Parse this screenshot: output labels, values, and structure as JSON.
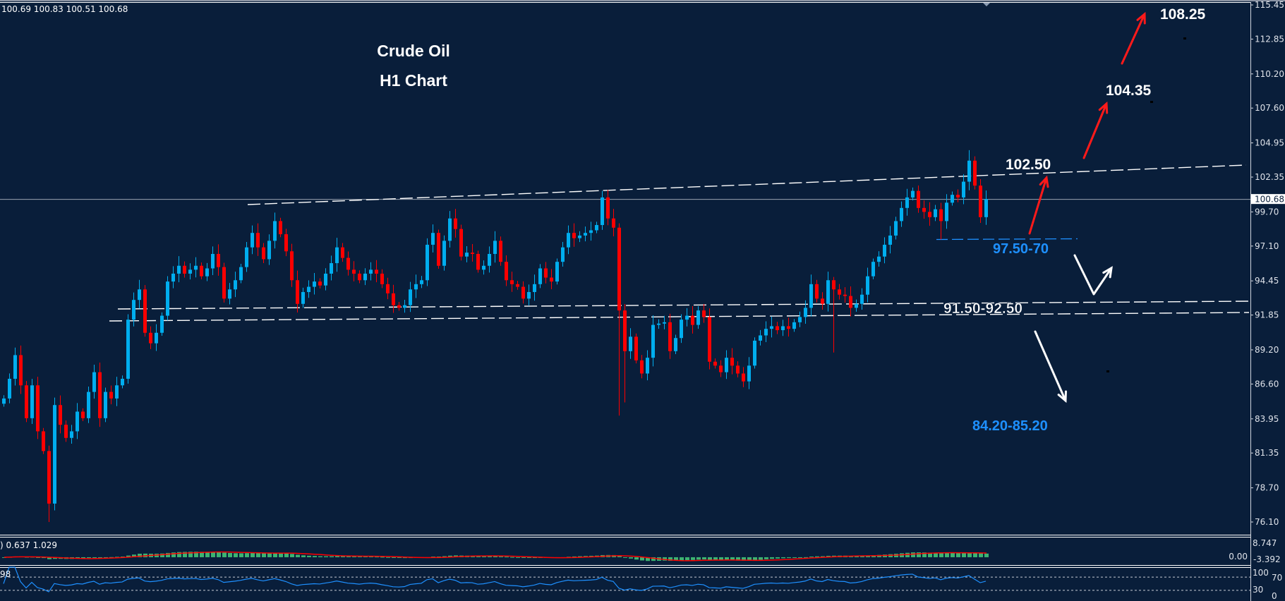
{
  "header": {
    "ohlc": "100.69 100.83 100.51 100.68"
  },
  "colors": {
    "background": "#091e3a",
    "bull": "#00aeef",
    "bear": "#ff0000",
    "doji": "#00e000",
    "trendline": "#ffffff",
    "support_blue": "#1e90ff",
    "arrow_red": "#ff1a1a",
    "macd_hist": "#3cb371",
    "macd_signal": "#ff0000",
    "rsi": "#1e90ff"
  },
  "chart_data": {
    "type": "candlestick",
    "title": "Crude Oil",
    "subtitle": "H1 Chart",
    "ylim": [
      76.1,
      115.45
    ],
    "y_ticks": [
      "115.45",
      "112.85",
      "110.20",
      "107.60",
      "104.95",
      "102.35",
      "99.70",
      "97.10",
      "94.45",
      "91.85",
      "89.20",
      "86.60",
      "83.95",
      "81.35",
      "78.70",
      "76.10"
    ],
    "last_price": "100.68",
    "closes": [
      85.5,
      87.0,
      88.8,
      86.5,
      84.0,
      86.5,
      83.0,
      81.5,
      77.5,
      85.0,
      83.5,
      82.5,
      83.0,
      84.5,
      84.0,
      86.0,
      87.5,
      84.0,
      86.0,
      85.5,
      86.5,
      87.0,
      91.5,
      93.0,
      93.8,
      90.5,
      89.7,
      90.5,
      91.8,
      94.4,
      95.0,
      95.6,
      95.0,
      95.3,
      95.6,
      94.8,
      95.4,
      96.5,
      95.5,
      93.1,
      93.8,
      94.5,
      95.5,
      97.0,
      98.1,
      97.0,
      96.1,
      97.5,
      99.0,
      98.0,
      96.7,
      94.5,
      92.7,
      93.6,
      94.0,
      94.4,
      94.1,
      95.0,
      95.8,
      97.0,
      96.2,
      95.3,
      95.0,
      94.5,
      95.0,
      95.3,
      95.0,
      94.2,
      93.5,
      92.6,
      92.4,
      92.6,
      93.8,
      94.2,
      94.5,
      97.2,
      98.1,
      95.6,
      97.5,
      99.2,
      98.4,
      96.3,
      96.6,
      96.5,
      95.3,
      95.6,
      96.5,
      97.5,
      95.9,
      94.5,
      94.2,
      94.0,
      93.1,
      93.6,
      94.2,
      95.4,
      94.7,
      94.4,
      95.9,
      97.0,
      98.1,
      97.7,
      97.9,
      98.1,
      98.3,
      98.7,
      100.8,
      99.2,
      98.5,
      92.2,
      89.1,
      90.2,
      88.4,
      87.4,
      88.6,
      91.1,
      91.2,
      91.3,
      89.1,
      90.1,
      91.5,
      91.8,
      91.1,
      92.2,
      91.7,
      88.3,
      88.0,
      87.5,
      88.6,
      88.0,
      87.4,
      86.8,
      88.0,
      89.9,
      90.3,
      90.8,
      91.0,
      90.7,
      91.0,
      90.8,
      91.3,
      91.7,
      92.4,
      94.2,
      93.1,
      92.7,
      94.5,
      93.8,
      93.4,
      93.3,
      92.4,
      92.7,
      93.4,
      94.8,
      95.9,
      96.3,
      97.2,
      97.9,
      99.0,
      100.0,
      100.8,
      101.3,
      100.0,
      99.7,
      99.3,
      99.9,
      99.0,
      100.4,
      101.0,
      100.8,
      102.0,
      103.6,
      101.7,
      99.3,
      100.68
    ],
    "wick_extremes": [
      {
        "i": 8,
        "low": 76.1
      },
      {
        "i": 106,
        "high": 101.3
      },
      {
        "i": 109,
        "low": 84.2
      },
      {
        "i": 110,
        "low": 85.2
      },
      {
        "i": 147,
        "low": 89.0
      },
      {
        "i": 166,
        "low": 97.6
      },
      {
        "i": 171,
        "high": 104.4
      }
    ],
    "annotations": {
      "target_3": "108.25",
      "target_2": "104.35",
      "resistance": "102.50",
      "support_near": "97.50-70",
      "support_zone": "91.50-92.50",
      "target_down": "84.20-85.20"
    },
    "macd": {
      "label": ") 0.637 1.029",
      "y_ticks": [
        "8.747",
        "0.00",
        "-3.392"
      ]
    },
    "rsi": {
      "label": "98",
      "y_ticks": [
        "100",
        "70",
        "30",
        "0"
      ],
      "levels": [
        70,
        30
      ]
    }
  }
}
